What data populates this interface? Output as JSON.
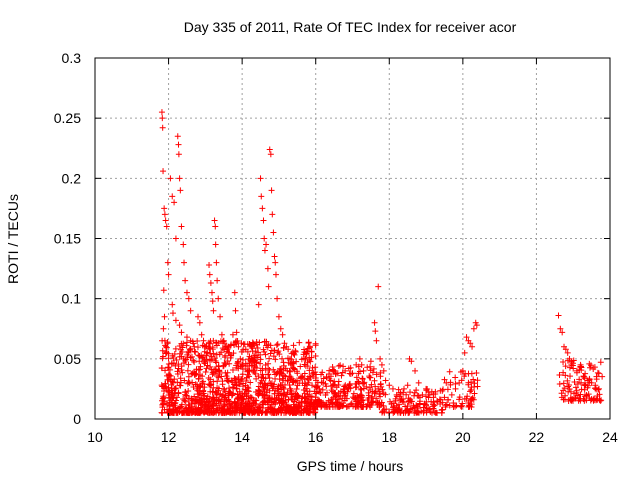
{
  "chart_data": {
    "type": "scatter",
    "title": "Day 335 of 2011, Rate Of TEC Index for receiver acor",
    "xlabel": "GPS time / hours",
    "ylabel": "ROTI / TECUs",
    "xlim": [
      10,
      24
    ],
    "ylim": [
      0,
      0.3
    ],
    "x_ticks": [
      10,
      12,
      14,
      16,
      18,
      20,
      22,
      24
    ],
    "x_tick_labels": [
      "10",
      "12",
      "14",
      "16",
      "18",
      "20",
      "22",
      "24"
    ],
    "y_ticks": [
      0,
      0.05,
      0.1,
      0.15,
      0.2,
      0.25,
      0.3
    ],
    "y_tick_labels": [
      "0",
      "0.05",
      "0.1",
      "0.15",
      "0.2",
      "0.25",
      "0.3"
    ],
    "grid": true,
    "marker": "plus",
    "marker_color": "#ff0000",
    "series": [
      {
        "name": "ROTI",
        "points": [
          [
            11.82,
            0.255
          ],
          [
            11.83,
            0.25
          ],
          [
            11.84,
            0.242
          ],
          [
            11.85,
            0.206
          ],
          [
            11.88,
            0.175
          ],
          [
            11.9,
            0.17
          ],
          [
            11.92,
            0.165
          ],
          [
            11.95,
            0.16
          ],
          [
            11.98,
            0.13
          ],
          [
            12.0,
            0.12
          ],
          [
            11.87,
            0.107
          ],
          [
            11.89,
            0.085
          ],
          [
            11.86,
            0.075
          ],
          [
            11.9,
            0.065
          ],
          [
            11.93,
            0.06
          ],
          [
            11.95,
            0.055
          ],
          [
            12.05,
            0.2
          ],
          [
            12.1,
            0.185
          ],
          [
            12.15,
            0.18
          ],
          [
            12.2,
            0.15
          ],
          [
            12.25,
            0.235
          ],
          [
            12.27,
            0.228
          ],
          [
            12.28,
            0.22
          ],
          [
            12.3,
            0.2
          ],
          [
            12.32,
            0.19
          ],
          [
            12.35,
            0.16
          ],
          [
            12.4,
            0.145
          ],
          [
            12.42,
            0.13
          ],
          [
            12.45,
            0.115
          ],
          [
            12.5,
            0.105
          ],
          [
            12.55,
            0.1
          ],
          [
            12.6,
            0.09
          ],
          [
            12.1,
            0.095
          ],
          [
            12.12,
            0.088
          ],
          [
            12.2,
            0.082
          ],
          [
            12.3,
            0.078
          ],
          [
            12.35,
            0.072
          ],
          [
            12.5,
            0.068
          ],
          [
            12.6,
            0.065
          ],
          [
            12.7,
            0.06
          ],
          [
            12.8,
            0.085
          ],
          [
            12.85,
            0.08
          ],
          [
            12.9,
            0.07
          ],
          [
            12.95,
            0.065
          ],
          [
            13.0,
            0.06
          ],
          [
            13.05,
            0.055
          ],
          [
            13.1,
            0.128
          ],
          [
            13.12,
            0.12
          ],
          [
            13.15,
            0.113
          ],
          [
            13.18,
            0.105
          ],
          [
            13.2,
            0.098
          ],
          [
            13.22,
            0.09
          ],
          [
            13.25,
            0.165
          ],
          [
            13.27,
            0.16
          ],
          [
            13.28,
            0.145
          ],
          [
            13.3,
            0.13
          ],
          [
            13.32,
            0.115
          ],
          [
            13.35,
            0.1
          ],
          [
            13.4,
            0.085
          ],
          [
            13.45,
            0.07
          ],
          [
            13.5,
            0.065
          ],
          [
            13.55,
            0.06
          ],
          [
            13.6,
            0.058
          ],
          [
            13.65,
            0.055
          ],
          [
            13.7,
            0.062
          ],
          [
            13.75,
            0.07
          ],
          [
            13.8,
            0.105
          ],
          [
            13.82,
            0.09
          ],
          [
            13.85,
            0.072
          ],
          [
            13.9,
            0.06
          ],
          [
            13.95,
            0.05
          ],
          [
            14.0,
            0.045
          ],
          [
            14.1,
            0.058
          ],
          [
            14.2,
            0.052
          ],
          [
            14.3,
            0.048
          ],
          [
            14.4,
            0.062
          ],
          [
            14.45,
            0.095
          ],
          [
            14.5,
            0.2
          ],
          [
            14.52,
            0.185
          ],
          [
            14.55,
            0.175
          ],
          [
            14.58,
            0.165
          ],
          [
            14.6,
            0.15
          ],
          [
            14.62,
            0.14
          ],
          [
            14.65,
            0.145
          ],
          [
            14.7,
            0.125
          ],
          [
            14.72,
            0.11
          ],
          [
            14.75,
            0.224
          ],
          [
            14.78,
            0.22
          ],
          [
            14.8,
            0.19
          ],
          [
            14.82,
            0.17
          ],
          [
            14.85,
            0.155
          ],
          [
            14.88,
            0.135
          ],
          [
            14.9,
            0.13
          ],
          [
            14.92,
            0.12
          ],
          [
            14.95,
            0.1
          ],
          [
            15.0,
            0.085
          ],
          [
            15.05,
            0.075
          ],
          [
            15.1,
            0.07
          ],
          [
            15.15,
            0.063
          ],
          [
            15.2,
            0.06
          ],
          [
            15.25,
            0.058
          ],
          [
            15.3,
            0.05
          ],
          [
            15.35,
            0.045
          ],
          [
            15.4,
            0.042
          ],
          [
            15.5,
            0.038
          ],
          [
            15.6,
            0.035
          ],
          [
            15.7,
            0.033
          ],
          [
            15.8,
            0.03
          ],
          [
            15.9,
            0.028
          ],
          [
            16.0,
            0.027
          ],
          [
            16.1,
            0.025
          ],
          [
            16.2,
            0.03
          ],
          [
            16.3,
            0.035
          ],
          [
            16.4,
            0.032
          ],
          [
            16.5,
            0.04
          ],
          [
            16.6,
            0.038
          ],
          [
            16.7,
            0.036
          ],
          [
            16.8,
            0.04
          ],
          [
            16.9,
            0.042
          ],
          [
            17.0,
            0.038
          ],
          [
            17.1,
            0.045
          ],
          [
            17.2,
            0.05
          ],
          [
            17.25,
            0.045
          ],
          [
            17.3,
            0.04
          ],
          [
            17.4,
            0.043
          ],
          [
            17.5,
            0.048
          ],
          [
            17.6,
            0.08
          ],
          [
            17.62,
            0.073
          ],
          [
            17.65,
            0.065
          ],
          [
            17.7,
            0.11
          ],
          [
            17.75,
            0.05
          ],
          [
            17.8,
            0.045
          ],
          [
            17.85,
            0.04
          ],
          [
            17.9,
            0.032
          ],
          [
            18.0,
            0.028
          ],
          [
            18.1,
            0.025
          ],
          [
            18.2,
            0.02
          ],
          [
            18.3,
            0.022
          ],
          [
            18.4,
            0.025
          ],
          [
            18.5,
            0.028
          ],
          [
            18.55,
            0.05
          ],
          [
            18.6,
            0.048
          ],
          [
            18.7,
            0.04
          ],
          [
            18.8,
            0.03
          ],
          [
            18.9,
            0.02
          ],
          [
            19.0,
            0.025
          ],
          [
            19.1,
            0.02
          ],
          [
            19.2,
            0.018
          ],
          [
            19.3,
            0.015
          ],
          [
            19.4,
            0.016
          ],
          [
            19.5,
            0.018
          ],
          [
            19.6,
            0.016
          ],
          [
            19.7,
            0.02
          ],
          [
            19.8,
            0.025
          ],
          [
            19.9,
            0.03
          ],
          [
            20.0,
            0.04
          ],
          [
            20.05,
            0.055
          ],
          [
            20.1,
            0.068
          ],
          [
            20.15,
            0.065
          ],
          [
            20.2,
            0.063
          ],
          [
            20.25,
            0.06
          ],
          [
            20.3,
            0.075
          ],
          [
            20.35,
            0.08
          ],
          [
            20.38,
            0.078
          ],
          [
            22.6,
            0.086
          ],
          [
            22.65,
            0.075
          ],
          [
            22.7,
            0.072
          ],
          [
            22.75,
            0.06
          ],
          [
            22.8,
            0.058
          ],
          [
            22.85,
            0.055
          ],
          [
            22.9,
            0.05
          ],
          [
            22.95,
            0.045
          ],
          [
            23.0,
            0.042
          ],
          [
            23.1,
            0.04
          ],
          [
            23.2,
            0.045
          ],
          [
            23.3,
            0.035
          ],
          [
            23.4,
            0.032
          ],
          [
            23.5,
            0.03
          ],
          [
            23.6,
            0.028
          ],
          [
            23.7,
            0.025
          ]
        ],
        "dense_bands": [
          {
            "x_range": [
              11.8,
              16.0
            ],
            "y_range": [
              0.005,
              0.065
            ],
            "count": 1300
          },
          {
            "x_range": [
              16.0,
              17.8
            ],
            "y_range": [
              0.01,
              0.045
            ],
            "count": 260
          },
          {
            "x_range": [
              17.8,
              19.5
            ],
            "y_range": [
              0.005,
              0.025
            ],
            "count": 140
          },
          {
            "x_range": [
              19.5,
              20.4
            ],
            "y_range": [
              0.01,
              0.04
            ],
            "count": 60
          },
          {
            "x_range": [
              22.6,
              23.8
            ],
            "y_range": [
              0.015,
              0.05
            ],
            "count": 110
          }
        ]
      }
    ]
  }
}
